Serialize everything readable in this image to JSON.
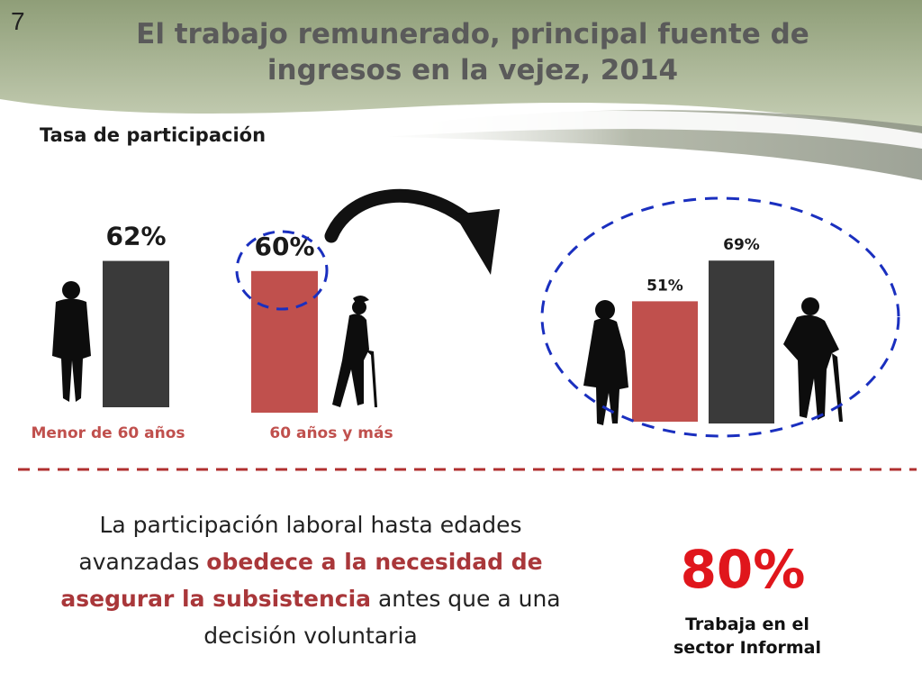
{
  "slide": {
    "number": "7",
    "title_line1": "El trabajo remunerado, principal fuente de",
    "title_line2": "ingresos en la vejez, 2014",
    "subtitle": "Tasa de participación"
  },
  "chart_data": {
    "type": "bar",
    "title": "Tasa de participación",
    "groups": [
      {
        "name": "age",
        "categories": [
          "Menor de 60 años",
          "60 años y más"
        ],
        "values": [
          62,
          60
        ],
        "labels": [
          "62%",
          "60%"
        ],
        "colors": [
          "#3a3a3a",
          "#c0504d"
        ],
        "highlighted": "60 años y más"
      },
      {
        "name": "sex-60-plus",
        "categories": [
          "Mujeres",
          "Hombres"
        ],
        "values": [
          51,
          69
        ],
        "labels": [
          "51%",
          "69%"
        ],
        "colors": [
          "#c0504d",
          "#3a3a3a"
        ]
      }
    ],
    "ylim": [
      0,
      100
    ],
    "grid": false
  },
  "text_block": {
    "part1": "La participación laboral hasta edades avanzadas ",
    "highlight": "obedece a la necesidad de asegurar la subsistencia",
    "part2": " antes que a una decisión voluntaria"
  },
  "stat": {
    "value": "80%",
    "line1": "Trabaja en el",
    "line2": "sector Informal"
  },
  "colors": {
    "accent_red": "#c0504d",
    "dark_bar": "#3a3a3a",
    "dashed_blue": "#1a2fbf",
    "dashed_red": "#b03030"
  }
}
